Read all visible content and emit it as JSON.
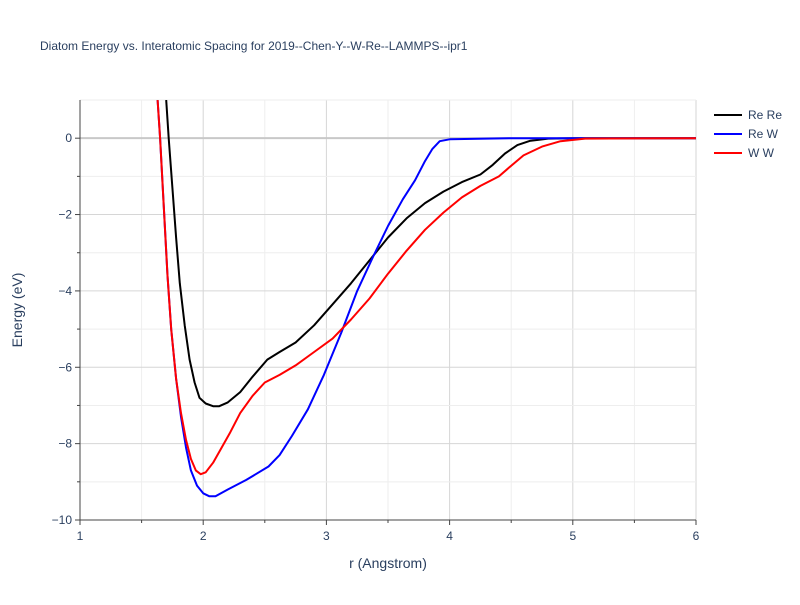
{
  "chart_data": {
    "type": "line",
    "title": "Diatom Energy vs. Interatomic Spacing for 2019--Chen-Y--W-Re--LAMMPS--ipr1",
    "xlabel": "r (Angstrom)",
    "ylabel": "Energy (eV)",
    "xlim": [
      1,
      6
    ],
    "ylim": [
      -10,
      1
    ],
    "x_ticks": [
      1,
      2,
      3,
      4,
      5,
      6
    ],
    "y_ticks": [
      -10,
      -8,
      -6,
      -4,
      -2,
      0
    ],
    "grid": true,
    "legend_position": "top-right",
    "series": [
      {
        "name": "Re Re",
        "color": "#000000",
        "points": [
          [
            1.7,
            1.0
          ],
          [
            1.72,
            0.0
          ],
          [
            1.75,
            -1.3
          ],
          [
            1.78,
            -2.6
          ],
          [
            1.81,
            -3.8
          ],
          [
            1.85,
            -4.9
          ],
          [
            1.89,
            -5.8
          ],
          [
            1.93,
            -6.4
          ],
          [
            1.97,
            -6.8
          ],
          [
            2.02,
            -6.95
          ],
          [
            2.08,
            -7.02
          ],
          [
            2.13,
            -7.02
          ],
          [
            2.2,
            -6.92
          ],
          [
            2.3,
            -6.65
          ],
          [
            2.4,
            -6.25
          ],
          [
            2.52,
            -5.8
          ],
          [
            2.62,
            -5.6
          ],
          [
            2.75,
            -5.35
          ],
          [
            2.9,
            -4.9
          ],
          [
            3.05,
            -4.35
          ],
          [
            3.2,
            -3.8
          ],
          [
            3.35,
            -3.2
          ],
          [
            3.5,
            -2.6
          ],
          [
            3.65,
            -2.1
          ],
          [
            3.8,
            -1.7
          ],
          [
            3.95,
            -1.4
          ],
          [
            4.1,
            -1.15
          ],
          [
            4.25,
            -0.95
          ],
          [
            4.35,
            -0.7
          ],
          [
            4.45,
            -0.4
          ],
          [
            4.55,
            -0.18
          ],
          [
            4.65,
            -0.07
          ],
          [
            4.8,
            -0.01
          ],
          [
            5.0,
            0.0
          ],
          [
            6.0,
            0.0
          ]
        ]
      },
      {
        "name": "Re W",
        "color": "#0000ff",
        "points": [
          [
            1.63,
            1.0
          ],
          [
            1.65,
            0.0
          ],
          [
            1.68,
            -1.8
          ],
          [
            1.71,
            -3.6
          ],
          [
            1.74,
            -5.0
          ],
          [
            1.78,
            -6.3
          ],
          [
            1.82,
            -7.3
          ],
          [
            1.86,
            -8.1
          ],
          [
            1.9,
            -8.7
          ],
          [
            1.95,
            -9.1
          ],
          [
            2.0,
            -9.3
          ],
          [
            2.05,
            -9.38
          ],
          [
            2.1,
            -9.38
          ],
          [
            2.2,
            -9.2
          ],
          [
            2.35,
            -8.95
          ],
          [
            2.53,
            -8.6
          ],
          [
            2.62,
            -8.3
          ],
          [
            2.72,
            -7.8
          ],
          [
            2.85,
            -7.1
          ],
          [
            2.98,
            -6.2
          ],
          [
            3.12,
            -5.1
          ],
          [
            3.25,
            -4.0
          ],
          [
            3.38,
            -3.1
          ],
          [
            3.5,
            -2.3
          ],
          [
            3.62,
            -1.6
          ],
          [
            3.72,
            -1.1
          ],
          [
            3.8,
            -0.6
          ],
          [
            3.86,
            -0.28
          ],
          [
            3.92,
            -0.08
          ],
          [
            4.0,
            -0.03
          ],
          [
            4.5,
            0.0
          ],
          [
            5.0,
            0.0
          ],
          [
            6.0,
            0.0
          ]
        ]
      },
      {
        "name": "W W",
        "color": "#ff0000",
        "points": [
          [
            1.63,
            1.0
          ],
          [
            1.65,
            0.0
          ],
          [
            1.68,
            -1.8
          ],
          [
            1.71,
            -3.6
          ],
          [
            1.74,
            -5.0
          ],
          [
            1.78,
            -6.3
          ],
          [
            1.82,
            -7.2
          ],
          [
            1.86,
            -7.9
          ],
          [
            1.9,
            -8.4
          ],
          [
            1.94,
            -8.7
          ],
          [
            1.98,
            -8.8
          ],
          [
            2.02,
            -8.75
          ],
          [
            2.08,
            -8.5
          ],
          [
            2.15,
            -8.1
          ],
          [
            2.22,
            -7.7
          ],
          [
            2.3,
            -7.2
          ],
          [
            2.4,
            -6.75
          ],
          [
            2.5,
            -6.4
          ],
          [
            2.62,
            -6.2
          ],
          [
            2.75,
            -5.95
          ],
          [
            2.9,
            -5.6
          ],
          [
            3.05,
            -5.25
          ],
          [
            3.2,
            -4.75
          ],
          [
            3.35,
            -4.2
          ],
          [
            3.5,
            -3.55
          ],
          [
            3.65,
            -2.95
          ],
          [
            3.8,
            -2.4
          ],
          [
            3.95,
            -1.95
          ],
          [
            4.1,
            -1.55
          ],
          [
            4.25,
            -1.25
          ],
          [
            4.4,
            -1.0
          ],
          [
            4.5,
            -0.72
          ],
          [
            4.6,
            -0.45
          ],
          [
            4.75,
            -0.22
          ],
          [
            4.9,
            -0.08
          ],
          [
            5.1,
            -0.01
          ],
          [
            6.0,
            0.0
          ]
        ]
      }
    ]
  }
}
